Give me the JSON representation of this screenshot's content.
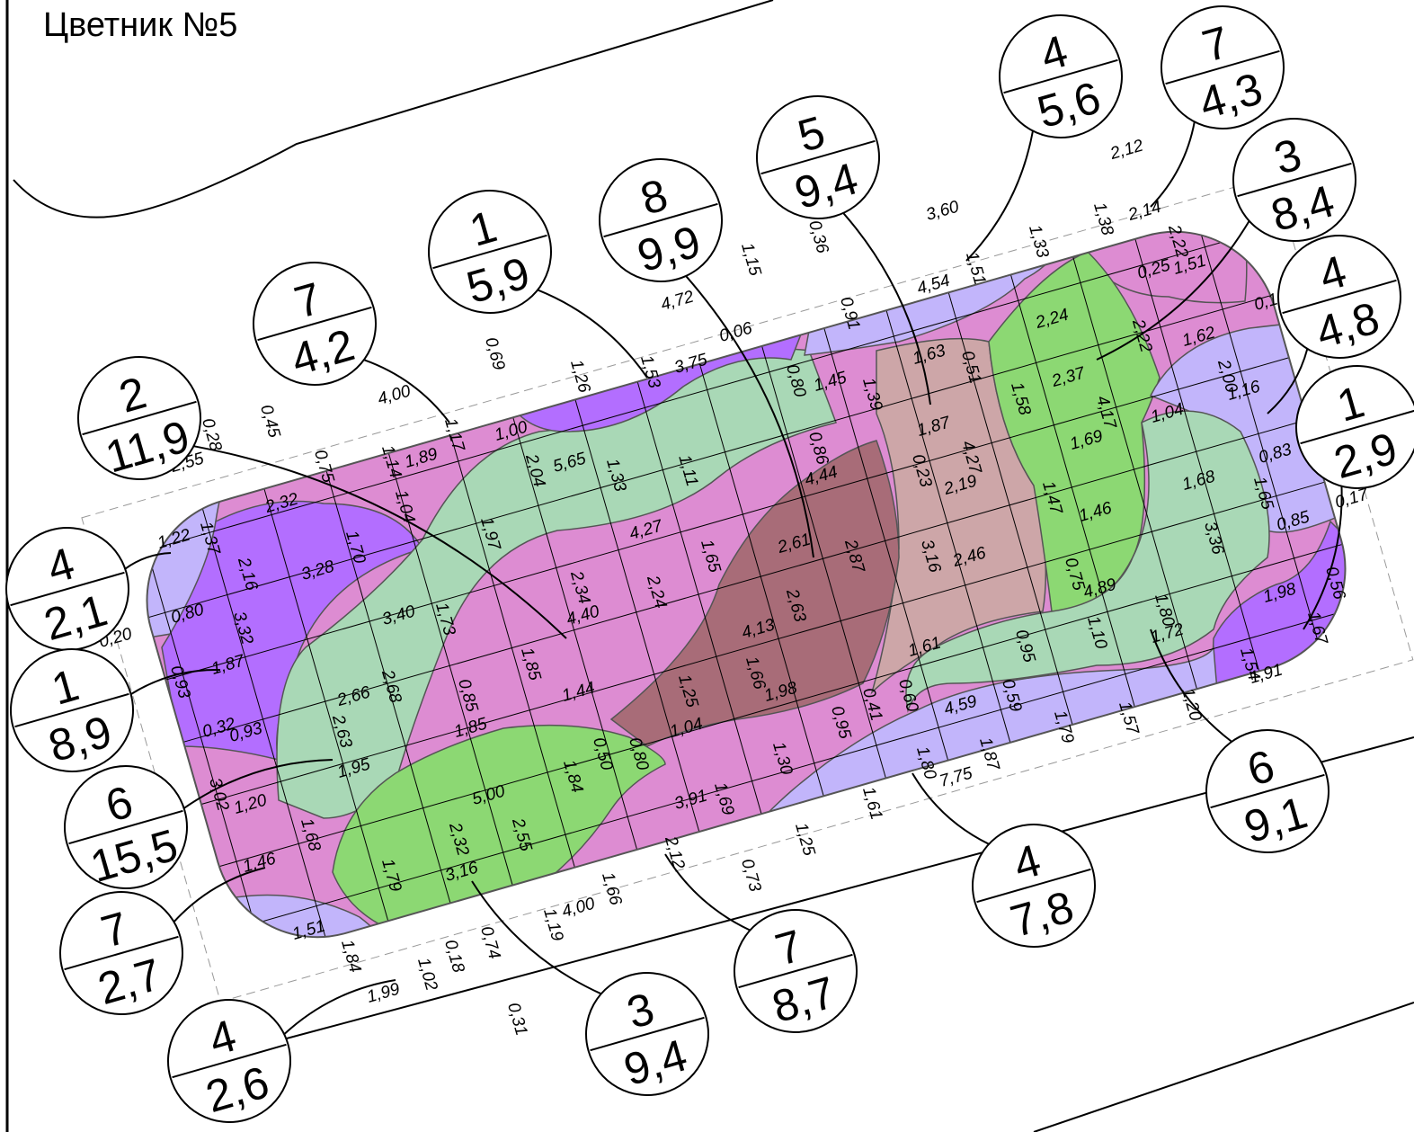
{
  "title": "Цветник №5",
  "callouts": [
    {
      "top": "4",
      "bottom": "5,6"
    },
    {
      "top": "7",
      "bottom": "4,3"
    },
    {
      "top": "3",
      "bottom": "8,4"
    },
    {
      "top": "4",
      "bottom": "4,8"
    },
    {
      "top": "1",
      "bottom": "2,9"
    },
    {
      "top": "5",
      "bottom": "9,4"
    },
    {
      "top": "8",
      "bottom": "9,9"
    },
    {
      "top": "1",
      "bottom": "5,9"
    },
    {
      "top": "7",
      "bottom": "4,2"
    },
    {
      "top": "2",
      "bottom": "11,9"
    },
    {
      "top": "4",
      "bottom": "2,1"
    },
    {
      "top": "1",
      "bottom": "8,9"
    },
    {
      "top": "6",
      "bottom": "15,5"
    },
    {
      "top": "7",
      "bottom": "2,7"
    },
    {
      "top": "4",
      "bottom": "2,6"
    },
    {
      "top": "3",
      "bottom": "9,4"
    },
    {
      "top": "7",
      "bottom": "8,7"
    },
    {
      "top": "4",
      "bottom": "7,8"
    },
    {
      "top": "6",
      "bottom": "9,1"
    }
  ],
  "dimensions": [
    "2,12",
    "3,60",
    "1,33",
    "1,51",
    "4,54",
    "1,38",
    "2,14",
    "2,22",
    "0,25",
    "1,51",
    "0,16",
    "2,24",
    "1,62",
    "2,00",
    "2,22",
    "1,16",
    "0,36",
    "1,15",
    "0,91",
    "1,63",
    "0,51",
    "2,37",
    "1,58",
    "4,17",
    "4,72",
    "0,06",
    "0,69",
    "1,26",
    "1,53",
    "3,75",
    "0,80",
    "1,45",
    "1,39",
    "1,87",
    "1,04",
    "4,00",
    "0,28",
    "0,45",
    "1,17",
    "1,00",
    "0,86",
    "4,27",
    "0,23",
    "1,69",
    "0,83",
    "2,55",
    "0,75",
    "1,14",
    "1,89",
    "2,04",
    "5,65",
    "1,33",
    "1,11",
    "4,44",
    "2,19",
    "1,47",
    "1,68",
    "1,65",
    "0,17",
    "1,22",
    "1,37",
    "2,32",
    "1,04",
    "1,97",
    "4,27",
    "1,65",
    "2,61",
    "2,87",
    "3,16",
    "2,46",
    "1,46",
    "3,36",
    "0,85",
    "1,70",
    "2,16",
    "3,28",
    "2,34",
    "2,24",
    "0,75",
    "4,89",
    "0,56",
    "0,20",
    "0,80",
    "3,40",
    "1,73",
    "4,40",
    "2,63",
    "1,98",
    "1,80",
    "3,32",
    "4,13",
    "1,61",
    "0,95",
    "1,10",
    "1,72",
    "1,67",
    "0,93",
    "1,87",
    "1,85",
    "1,66",
    "1,54",
    "2,68",
    "1,25",
    "1,44",
    "1,98",
    "0,41",
    "0,60",
    "0,59",
    "1,91",
    "0,32",
    "0,93",
    "2,66",
    "0,85",
    "4,59",
    "1,79",
    "1,57",
    "1,20",
    "2,63",
    "1,85",
    "1,04",
    "0,95",
    "0,50",
    "0,80",
    "1,30",
    "1,87",
    "1,84",
    "1,80",
    "1,95",
    "7,75",
    "3,02",
    "1,20",
    "5,00",
    "3,91",
    "1,69",
    "1,61",
    "1,68",
    "2,32",
    "2,55",
    "1,25",
    "1,46",
    "1,79",
    "3,16",
    "2,12",
    "1,66",
    "0,73",
    "4,00",
    "1,19",
    "1,51",
    "1,84",
    "0,18",
    "0,74",
    "1,99",
    "1,02",
    "0,31"
  ]
}
